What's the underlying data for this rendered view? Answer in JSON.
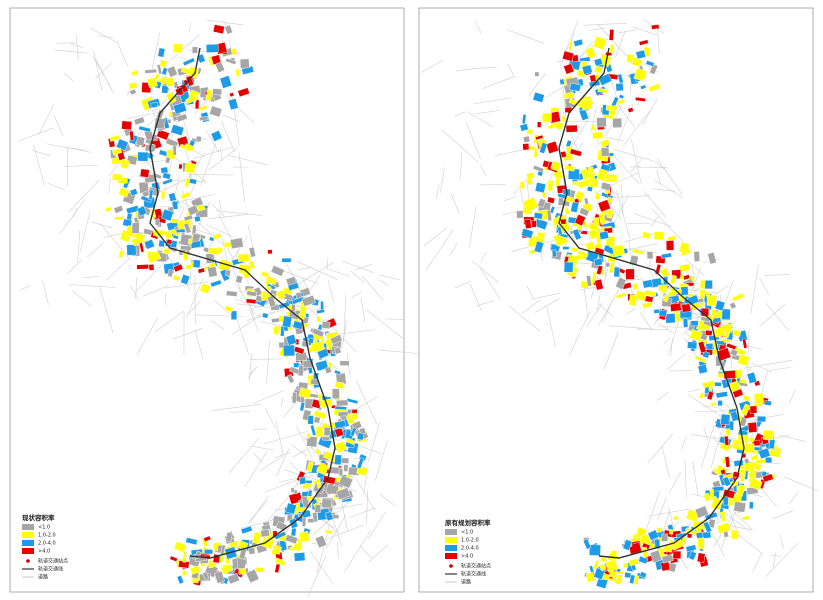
{
  "panels": [
    {
      "legend": {
        "title": "现状容积率",
        "classes": [
          {
            "label": "<1.0",
            "color": "#a6a6a6"
          },
          {
            "label": "1.0-2.0",
            "color": "#ffff00"
          },
          {
            "label": "2.0-4.0",
            "color": "#1e9be6"
          },
          {
            "label": ">4.0",
            "color": "#e60000"
          }
        ],
        "station": {
          "label": "轨道交通站点"
        },
        "line": {
          "label": "轨道交通线"
        },
        "road": {
          "label": "道路"
        }
      }
    },
    {
      "legend": {
        "title": "原有规划容积率",
        "classes": [
          {
            "label": "<1.0",
            "color": "#a6a6a6"
          },
          {
            "label": "1.0-2.0",
            "color": "#ffff00"
          },
          {
            "label": "2.0-4.0",
            "color": "#1e9be6"
          },
          {
            "label": ">4.0",
            "color": "#e60000"
          }
        ],
        "station": {
          "label": "轨道交通站点"
        },
        "line": {
          "label": "轨道交通线"
        },
        "road": {
          "label": "道路"
        }
      }
    }
  ]
}
